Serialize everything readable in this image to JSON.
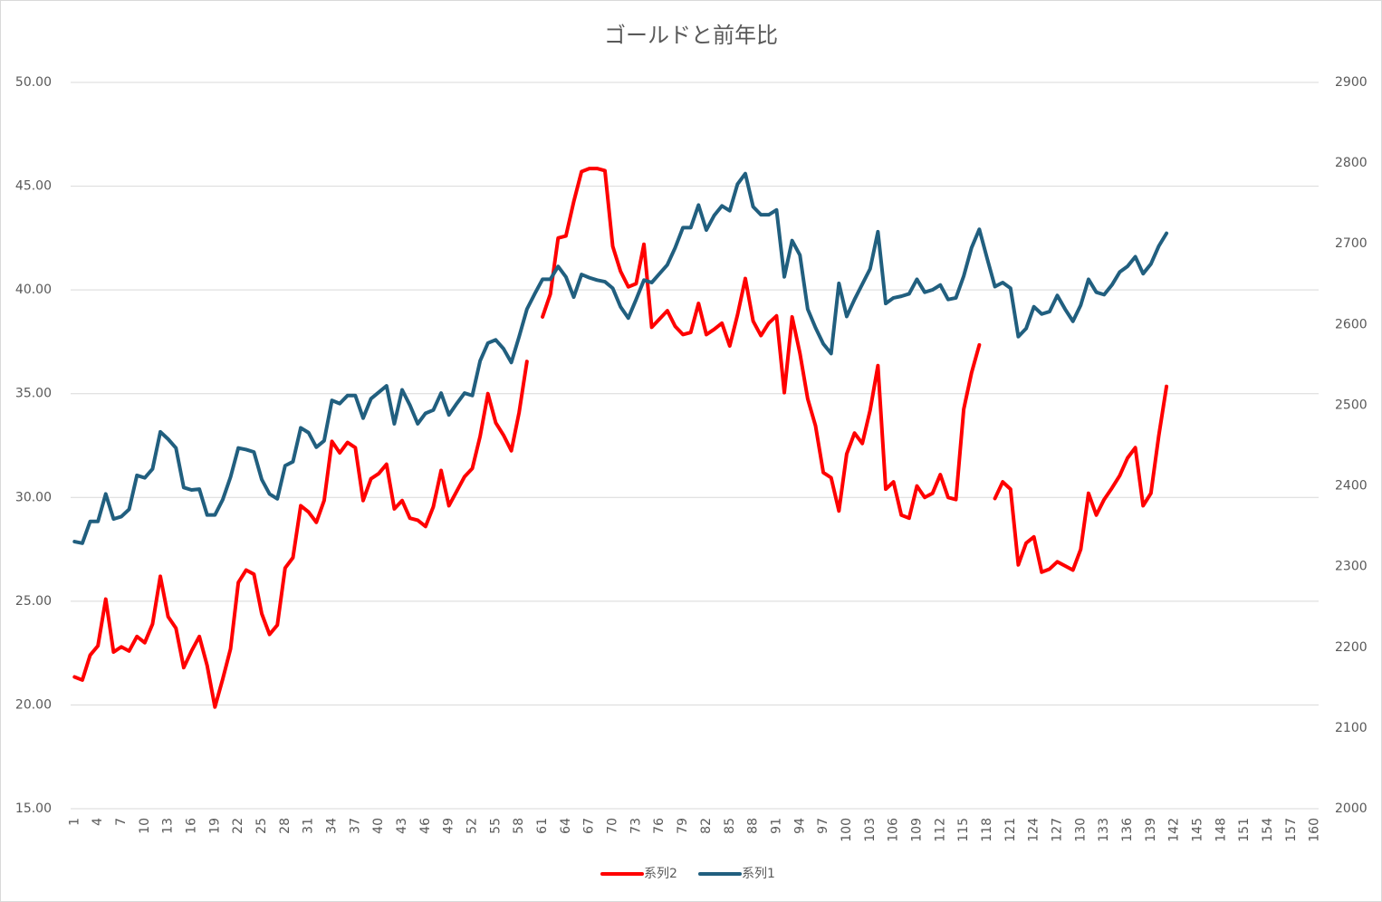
{
  "chart_data": {
    "type": "line",
    "title": "ゴールドと前年比",
    "categories": [
      1,
      null,
      null,
      4,
      null,
      null,
      7,
      null,
      null,
      10,
      null,
      null,
      13,
      null,
      null,
      16,
      null,
      null,
      19,
      null,
      null,
      22,
      null,
      null,
      25,
      null,
      null,
      28,
      null,
      null,
      31,
      null,
      null,
      34,
      null,
      null,
      37,
      null,
      null,
      40,
      null,
      null,
      43,
      null,
      null,
      46,
      null,
      null,
      49,
      null,
      null,
      52,
      null,
      null,
      55,
      null,
      null,
      58,
      null,
      null,
      61,
      null,
      null,
      64,
      null,
      null,
      67,
      null,
      null,
      70,
      null,
      null,
      73,
      null,
      null,
      76,
      null,
      null,
      79,
      null,
      null,
      82,
      null,
      null,
      85,
      null,
      null,
      88,
      null,
      null,
      91,
      null,
      null,
      94,
      null,
      null,
      97,
      null,
      null,
      100,
      null,
      null,
      103,
      null,
      null,
      106,
      null,
      null,
      109,
      null,
      null,
      112,
      null,
      null,
      115,
      null,
      null,
      118,
      null,
      null,
      121,
      null,
      null,
      124,
      null,
      null,
      127,
      null,
      null,
      130,
      null,
      null,
      133,
      null,
      null,
      136,
      null,
      null,
      139,
      null,
      null,
      142,
      null,
      null,
      145,
      null,
      null,
      148,
      null,
      null,
      151,
      null,
      null,
      154,
      null,
      null,
      157,
      null,
      null,
      160
    ],
    "series": [
      {
        "name": "系列2",
        "color": "#ff0000",
        "values": [
          21.35,
          21.2,
          22.4,
          22.85,
          25.1,
          22.55,
          22.8,
          22.6,
          23.3,
          23.0,
          23.9,
          26.2,
          24.25,
          23.7,
          21.8,
          22.6,
          23.3,
          21.9,
          19.9,
          21.25,
          22.7,
          25.9,
          26.5,
          26.3,
          24.4,
          23.4,
          23.85,
          26.6,
          27.1,
          29.6,
          29.3,
          28.8,
          29.85,
          32.7,
          32.15,
          32.65,
          32.4,
          29.85,
          30.9,
          31.15,
          31.6,
          29.45,
          29.85,
          29.0,
          28.9,
          28.6,
          29.55,
          31.3,
          29.6,
          30.3,
          31.0,
          31.4,
          32.95,
          35.0,
          33.6,
          33.0,
          32.25,
          34.1,
          36.55,
          null,
          38.7,
          39.8,
          42.5,
          42.6,
          44.25,
          45.7,
          45.85,
          45.85,
          45.75,
          42.1,
          40.9,
          40.15,
          40.3,
          42.2,
          38.2,
          38.6,
          39.0,
          38.25,
          37.85,
          37.95,
          39.35,
          37.85,
          38.1,
          38.4,
          37.3,
          38.8,
          40.55,
          38.5,
          37.8,
          38.4,
          38.75,
          35.05,
          38.7,
          36.95,
          34.75,
          33.45,
          31.2,
          30.95,
          29.35,
          32.1,
          33.1,
          32.6,
          34.2,
          36.35,
          30.4,
          30.75,
          29.15,
          29.0,
          30.55,
          30.0,
          30.2,
          31.1,
          30.0,
          29.9,
          34.25,
          36.0,
          37.35,
          null,
          29.95,
          30.75,
          30.4,
          26.75,
          27.8,
          28.1,
          26.4,
          26.55,
          26.9,
          26.7,
          26.5,
          27.5,
          30.2,
          29.15,
          29.9,
          30.45,
          31.05,
          31.9,
          32.4,
          29.6,
          30.2,
          32.95,
          35.35,
          null,
          null,
          null,
          null,
          null,
          null,
          null,
          null,
          null,
          null,
          null,
          null,
          null,
          null,
          null,
          null,
          null,
          null,
          null
        ]
      },
      {
        "name": "系列1",
        "color": "#215f7f",
        "axis": "y2",
        "values": [
          2331,
          2329,
          2356,
          2356,
          2390,
          2359,
          2362,
          2371,
          2413,
          2410,
          2421,
          2467,
          2458,
          2447,
          2398,
          2395,
          2396,
          2364,
          2364,
          2383,
          2411,
          2447,
          2445,
          2442,
          2408,
          2390,
          2384,
          2425,
          2430,
          2472,
          2466,
          2448,
          2456,
          2506,
          2502,
          2512,
          2512,
          2484,
          2508,
          2516,
          2524,
          2477,
          2519,
          2500,
          2477,
          2490,
          2494,
          2515,
          2488,
          2502,
          2515,
          2512,
          2555,
          2577,
          2581,
          2570,
          2553,
          2585,
          2619,
          2638,
          2656,
          2656,
          2672,
          2659,
          2634,
          2662,
          2658,
          2655,
          2653,
          2645,
          2622,
          2608,
          2631,
          2655,
          2652,
          2663,
          2674,
          2695,
          2720,
          2720,
          2748,
          2717,
          2735,
          2747,
          2741,
          2774,
          2787,
          2746,
          2736,
          2736,
          2742,
          2659,
          2704,
          2686,
          2619,
          2596,
          2576,
          2564,
          2651,
          2610,
          2631,
          2650,
          2669,
          2715,
          2626,
          2633,
          2635,
          2638,
          2656,
          2640,
          2643,
          2649,
          2631,
          2633,
          2660,
          2695,
          2718,
          2682,
          2647,
          2652,
          2645,
          2585,
          2595,
          2622,
          2613,
          2616,
          2636,
          2619,
          2604,
          2624,
          2656,
          2640,
          2637,
          2649,
          2665,
          2672,
          2684,
          2663,
          2675,
          2697,
          2713,
          null,
          null,
          null,
          null,
          null,
          null,
          null,
          null,
          null,
          null,
          null,
          null,
          null,
          null,
          null,
          null,
          null,
          null,
          null
        ]
      }
    ],
    "ylim": [
      15,
      50
    ],
    "yticks": [
      {
        "value": 15,
        "label": "15.00"
      },
      {
        "value": 20,
        "label": "20.00"
      },
      {
        "value": 25,
        "label": "25.00"
      },
      {
        "value": 30,
        "label": "30.00"
      },
      {
        "value": 35,
        "label": "35.00"
      },
      {
        "value": 40,
        "label": "40.00"
      },
      {
        "value": 45,
        "label": "45.00"
      },
      {
        "value": 50,
        "label": "50.00"
      }
    ],
    "y2lim": [
      2000,
      2900
    ],
    "y2ticks": [
      2000,
      2100,
      2200,
      2300,
      2400,
      2500,
      2600,
      2700,
      2800,
      2900
    ],
    "grid": true,
    "legend": "bottom"
  }
}
